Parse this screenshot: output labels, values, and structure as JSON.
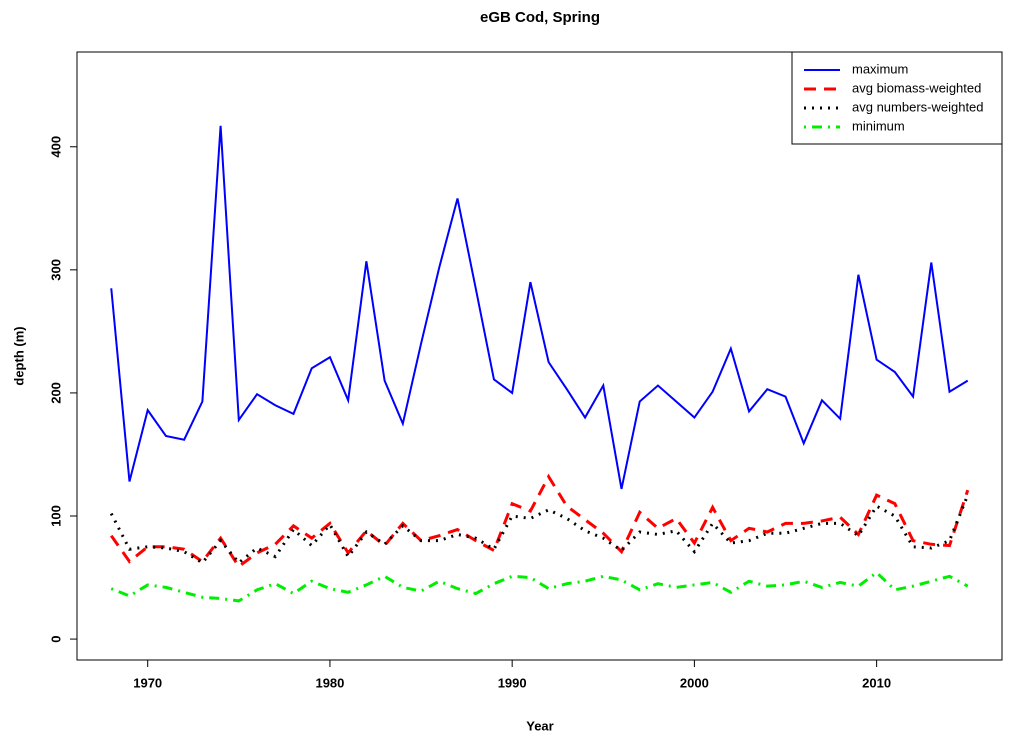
{
  "chart_data": {
    "type": "line",
    "title": "eGB Cod, Spring",
    "x_label": "Year",
    "y_label": "depth (m)",
    "x": [
      1968,
      1969,
      1970,
      1971,
      1972,
      1973,
      1974,
      1975,
      1976,
      1977,
      1978,
      1979,
      1980,
      1981,
      1982,
      1983,
      1984,
      1985,
      1986,
      1987,
      1988,
      1989,
      1990,
      1991,
      1992,
      1993,
      1994,
      1995,
      1996,
      1997,
      1998,
      1999,
      2000,
      2001,
      2002,
      2003,
      2004,
      2005,
      2006,
      2007,
      2008,
      2009,
      2010,
      2011,
      2012,
      2013,
      2014,
      2015
    ],
    "series": [
      {
        "name": "maximum",
        "color": "#0000ff",
        "dash": "solid",
        "values": [
          285,
          128,
          186,
          165,
          162,
          193,
          417,
          178,
          199,
          190,
          183,
          220,
          229,
          194,
          307,
          210,
          175,
          240,
          302,
          358,
          285,
          211,
          200,
          290,
          225,
          203,
          180,
          206,
          122,
          193,
          206,
          193,
          180,
          201,
          236,
          185,
          203,
          197,
          159,
          194,
          179,
          296,
          227,
          217,
          197,
          306,
          201,
          210
        ]
      },
      {
        "name": "avg biomass-weighted",
        "color": "#ff0000",
        "dash": "dashed",
        "values": [
          84,
          63,
          75,
          75,
          73,
          63,
          82,
          59,
          70,
          77,
          92,
          82,
          94,
          70,
          88,
          76,
          94,
          80,
          84,
          89,
          80,
          72,
          110,
          104,
          132,
          108,
          97,
          86,
          71,
          103,
          90,
          98,
          78,
          107,
          80,
          90,
          87,
          94,
          94,
          96,
          99,
          85,
          117,
          110,
          80,
          77,
          76,
          121
        ]
      },
      {
        "name": "avg numbers-weighted",
        "color": "#000000",
        "dash": "dotted",
        "values": [
          102,
          73,
          75,
          74,
          71,
          62,
          80,
          62,
          74,
          67,
          89,
          76,
          93,
          67,
          87,
          77,
          92,
          80,
          80,
          85,
          82,
          73,
          100,
          98,
          105,
          98,
          88,
          82,
          72,
          87,
          85,
          88,
          71,
          94,
          78,
          80,
          86,
          86,
          90,
          94,
          94,
          84,
          108,
          100,
          75,
          74,
          80,
          117
        ]
      },
      {
        "name": "minimum",
        "color": "#00ee00",
        "dash": "dotdash",
        "values": [
          41,
          35,
          44,
          42,
          38,
          34,
          33,
          31,
          40,
          45,
          37,
          47,
          41,
          38,
          44,
          51,
          42,
          39,
          47,
          41,
          37,
          45,
          51,
          50,
          41,
          45,
          47,
          51,
          48,
          40,
          45,
          42,
          44,
          46,
          38,
          47,
          43,
          44,
          47,
          42,
          46,
          43,
          54,
          40,
          43,
          47,
          51,
          43
        ]
      }
    ],
    "xlim": [
      1966.12,
      2016.88
    ],
    "xticks": [
      1970,
      1980,
      1990,
      2000,
      2010
    ],
    "ylim": [
      -17,
      477
    ],
    "yticks": [
      0,
      100,
      200,
      300,
      400
    ],
    "legend": "top-right"
  }
}
